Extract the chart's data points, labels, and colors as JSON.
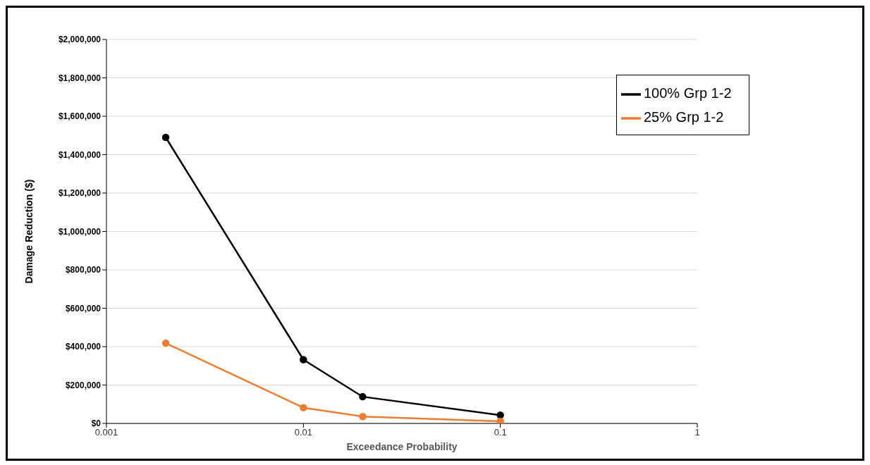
{
  "chart_data": {
    "type": "line",
    "xlabel": "Exceedance Probability",
    "ylabel": "Damage Reduction ($)",
    "x": [
      0.002,
      0.01,
      0.02,
      0.1
    ],
    "series": [
      {
        "name": "100% Grp 1-2",
        "color": "#000000",
        "values": [
          1490000,
          332000,
          139000,
          43000
        ]
      },
      {
        "name": "25% Grp 1-2",
        "color": "#ed7d31",
        "values": [
          418000,
          82000,
          36000,
          11000
        ]
      }
    ],
    "log": "x",
    "xlim": [
      0.001,
      1
    ],
    "xticks": [
      0.001,
      0.01,
      0.1,
      1
    ],
    "ylim": [
      0,
      2000000
    ],
    "yticks": [
      {
        "value": 0,
        "label": "$0"
      },
      {
        "value": 200000,
        "label": "$200,000"
      },
      {
        "value": 400000,
        "label": "$400,000"
      },
      {
        "value": 600000,
        "label": "$600,000"
      },
      {
        "value": 800000,
        "label": "$800,000"
      },
      {
        "value": 1000000,
        "label": "$1,000,000"
      },
      {
        "value": 1200000,
        "label": "$1,200,000"
      },
      {
        "value": 1400000,
        "label": "$1,400,000"
      },
      {
        "value": 1600000,
        "label": "$1,600,000"
      },
      {
        "value": 1800000,
        "label": "$1,800,000"
      },
      {
        "value": 2000000,
        "label": "$2,000,000"
      }
    ],
    "grid": "y",
    "legend": "top right",
    "marker": "circle",
    "line_style": "solid"
  }
}
